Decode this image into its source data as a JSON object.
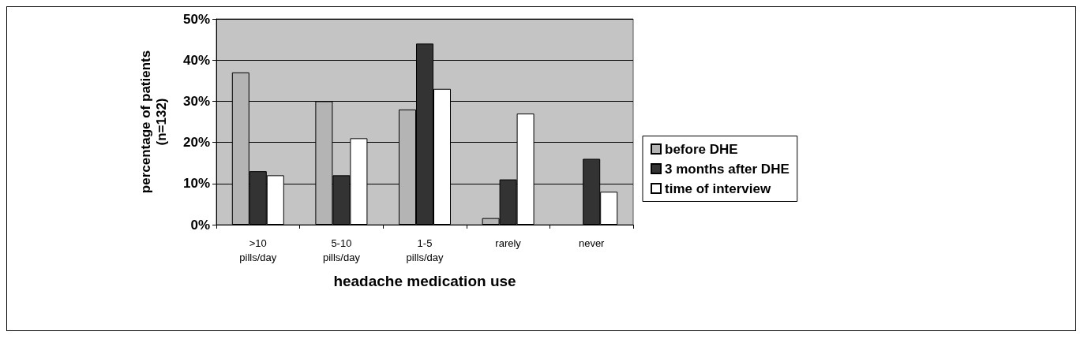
{
  "chart_data": {
    "type": "bar",
    "xlabel": "headache medication use",
    "ylabel": "percentage of patients\n(n=132)",
    "categories": [
      ">10\npills/day",
      "5-10\npills/day",
      "1-5\npills/day",
      "rarely",
      "never"
    ],
    "series": [
      {
        "name": "before DHE",
        "color": "#b4b4b4",
        "values": [
          37,
          30,
          28,
          1.6,
          null
        ]
      },
      {
        "name": "3 months after DHE",
        "color": "#333333",
        "values": [
          13,
          12,
          44,
          11,
          16
        ]
      },
      {
        "name": "time of interview",
        "color": "#ffffff",
        "values": [
          12,
          21,
          33,
          27,
          8
        ]
      }
    ],
    "ylim": [
      0,
      50
    ],
    "yticks": [
      {
        "value": 0,
        "label": "0%"
      },
      {
        "value": 10,
        "label": "10%"
      },
      {
        "value": 20,
        "label": "20%"
      },
      {
        "value": 30,
        "label": "30%"
      },
      {
        "value": 40,
        "label": "40%"
      },
      {
        "value": 50,
        "label": "50%"
      }
    ],
    "grid": "y",
    "legend": "right"
  }
}
